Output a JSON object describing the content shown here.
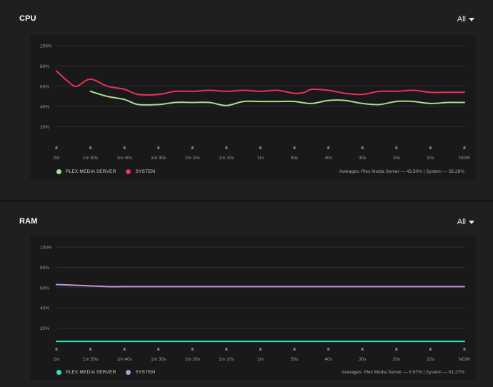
{
  "colors": {
    "plex_cpu": "#a6e08e",
    "system_cpu": "#e8325a",
    "plex_ram": "#2de3c3",
    "system_ram": "#c493e0"
  },
  "x_ticks": [
    "2m",
    "1m 50s",
    "1m 40s",
    "1m 30s",
    "1m 20s",
    "1m 10s",
    "1m",
    "50s",
    "40s",
    "30s",
    "20s",
    "10s",
    "NOW"
  ],
  "y_ticks": [
    "100%",
    "80%",
    "60%",
    "40%",
    "20%"
  ],
  "cpu": {
    "title": "CPU",
    "range_label": "All",
    "legend": [
      "PLEX MEDIA SERVER",
      "SYSTEM"
    ],
    "averages": "Averages: Plex Media Server — 43.50% | System — 56.28%"
  },
  "ram": {
    "title": "RAM",
    "range_label": "All",
    "legend": [
      "PLEX MEDIA SERVER",
      "SYSTEM"
    ],
    "averages": "Averages: Plex Media Server — 6.97% | System — 61.27%"
  },
  "chart_data": [
    {
      "type": "line",
      "title": "CPU",
      "ylim": [
        0,
        100
      ],
      "x_labels": [
        "2m",
        "1m 50s",
        "1m 40s",
        "1m 30s",
        "1m 20s",
        "1m 10s",
        "1m",
        "50s",
        "40s",
        "30s",
        "20s",
        "10s",
        "NOW"
      ],
      "series": [
        {
          "name": "PLEX MEDIA SERVER",
          "x_seconds_ago": [
            110,
            105,
            100,
            96,
            90,
            85,
            80,
            75,
            70,
            65,
            60,
            55,
            50,
            45,
            40,
            35,
            30,
            25,
            20,
            15,
            10,
            5,
            0
          ],
          "values": [
            55,
            50,
            47,
            42,
            42,
            44,
            44,
            44,
            41,
            45,
            45,
            45,
            45,
            43,
            46,
            46,
            43,
            42,
            45,
            45,
            43,
            44,
            44
          ]
        },
        {
          "name": "SYSTEM",
          "x_seconds_ago": [
            120,
            116,
            114,
            110,
            105,
            100,
            96,
            90,
            85,
            80,
            75,
            70,
            65,
            60,
            55,
            50,
            47,
            45,
            40,
            35,
            30,
            25,
            20,
            15,
            10,
            5,
            0
          ],
          "values": [
            75,
            63,
            60,
            67,
            60,
            57,
            52,
            52,
            55,
            55,
            56,
            55,
            56,
            55,
            56,
            53,
            54,
            57,
            56,
            53,
            52,
            55,
            55,
            56,
            54,
            54,
            54
          ]
        }
      ]
    },
    {
      "type": "line",
      "title": "RAM",
      "ylim": [
        0,
        100
      ],
      "x_labels": [
        "2m",
        "1m 50s",
        "1m 40s",
        "1m 30s",
        "1m 20s",
        "1m 10s",
        "1m",
        "50s",
        "40s",
        "30s",
        "20s",
        "10s",
        "NOW"
      ],
      "series": [
        {
          "name": "PLEX MEDIA SERVER",
          "x_seconds_ago": [
            120,
            110,
            100,
            90,
            80,
            70,
            60,
            50,
            40,
            30,
            20,
            10,
            0
          ],
          "values": [
            7,
            7,
            7,
            7,
            7,
            7,
            7,
            7,
            7,
            7,
            7,
            7,
            7
          ]
        },
        {
          "name": "SYSTEM",
          "x_seconds_ago": [
            120,
            112,
            105,
            100,
            90,
            80,
            70,
            60,
            50,
            40,
            30,
            20,
            10,
            0
          ],
          "values": [
            63,
            62,
            61,
            61,
            61,
            61,
            61,
            61,
            61,
            61,
            61,
            61,
            61,
            61
          ]
        }
      ]
    }
  ]
}
